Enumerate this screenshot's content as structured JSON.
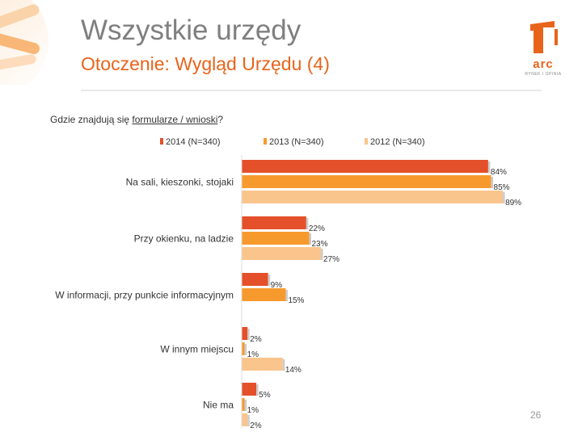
{
  "header": {
    "title": "Wszystkie urzędy",
    "subtitle": "Otoczenie: Wygląd Urzędu (4)",
    "logo_text": "arc",
    "logo_sub": "RYNEK I OPINIA"
  },
  "question": {
    "prefix": "Gdzie znajdują się ",
    "underlined": "formularze / wnioski",
    "suffix": "?"
  },
  "page_number": "26",
  "colors": {
    "accent": "#e8641b",
    "2014": "#e4502a",
    "2013": "#f79a2e",
    "2012": "#fac58c"
  },
  "chart_data": {
    "type": "bar",
    "orientation": "horizontal",
    "categories": [
      "Na sali, kieszonki, stojaki",
      "Przy okienku, na ladzie",
      "W informacji, przy punkcie informacyjnym",
      "W innym miejscu",
      "Nie ma"
    ],
    "series": [
      {
        "name": "2014 (N=340)",
        "values": [
          84,
          22,
          9,
          2,
          5
        ],
        "labels": [
          "84%",
          "22%",
          "9%",
          "2%",
          "5%"
        ]
      },
      {
        "name": "2013 (N=340)",
        "values": [
          85,
          23,
          15,
          1,
          1
        ],
        "labels": [
          "85%",
          "23%",
          "15%",
          "1%",
          "1%"
        ]
      },
      {
        "name": "2012 (N=340)",
        "values": [
          89,
          27,
          null,
          14,
          2
        ],
        "labels": [
          "89%",
          "27%",
          "",
          "14%",
          "2%"
        ]
      }
    ],
    "value_unit": "%",
    "xlim": [
      0,
      100
    ],
    "legend_position": "top",
    "grid": false
  }
}
